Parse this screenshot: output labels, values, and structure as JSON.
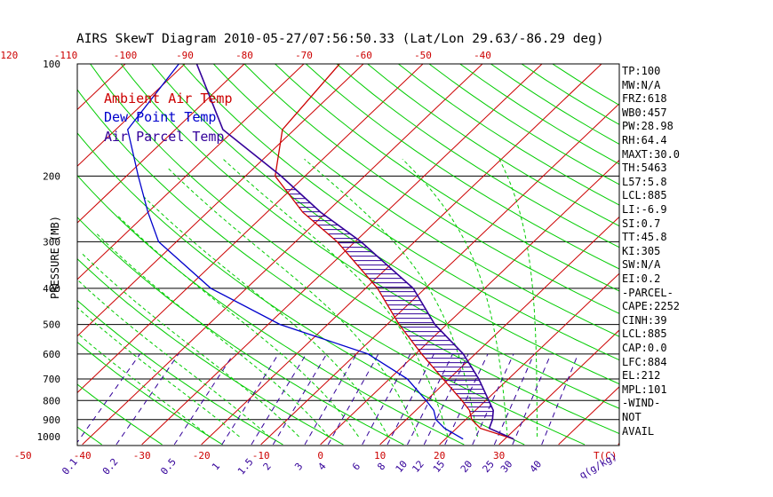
{
  "title": "AIRS SkewT Diagram 2010-05-27/07:56:50.33 (Lat/Lon 29.63/-86.29 deg)",
  "colors": {
    "ambient": "#cc0000",
    "dewpoint": "#0000cc",
    "parcel": "#330099",
    "isotherm": "#cc0000",
    "dry_adiabat": "#00cc00",
    "moist_adiabat": "#00cc00",
    "mixing_ratio": "#330099",
    "isobar": "#000000",
    "top_labels": "#cc0000",
    "bottom_labels": "#cc0000",
    "mixing_labels": "#330099"
  },
  "legend": [
    {
      "label": "Ambient Air Temp",
      "color": "#cc0000"
    },
    {
      "label": "Dew Point Temp",
      "color": "#0000cc"
    },
    {
      "label": "Air Parcel Temp",
      "color": "#330099"
    }
  ],
  "indices": [
    "TP:100",
    "MW:N/A",
    "FRZ:618",
    "WB0:457",
    "PW:28.98",
    "RH:64.4",
    "MAXT:30.0",
    "TH:5463",
    "L57:5.8",
    "LCL:885",
    "LI:-6.9",
    "SI:0.7",
    "TT:45.8",
    "KI:305",
    "SW:N/A",
    "EI:0.2",
    "-PARCEL-",
    "CAPE:2252",
    "CINH:39",
    "LCL:885",
    "CAP:0.0",
    "LFC:884",
    "EL:212",
    "MPL:101",
    "-WIND-",
    "NOT",
    "AVAIL"
  ],
  "chart_data": {
    "type": "line",
    "title": "AIRS SkewT Diagram 2010-05-27/07:56:50.33 (Lat/Lon 29.63/-86.29 deg)",
    "ylabel": "PRESSURE (MB)",
    "xlabel_bottom": "T(C)",
    "xlabel_mixing": "q(g/kg)",
    "pressure_ticks": [
      100,
      200,
      300,
      400,
      500,
      600,
      700,
      800,
      900,
      1000
    ],
    "isobars": [
      200,
      300,
      400,
      500,
      600,
      700,
      800,
      900
    ],
    "ylim": [
      1050,
      100
    ],
    "bottom_temp_ticks": [
      -50,
      -40,
      -30,
      -20,
      -10,
      0,
      10,
      20,
      30
    ],
    "top_temp_ticks": [
      -120,
      -110,
      -100,
      -90,
      -80,
      -70,
      -60,
      -50,
      -40
    ],
    "mixing_ratio_labels": [
      "0.1",
      "0.2",
      "0.5",
      "1",
      "1.5",
      "2",
      "3",
      "4",
      "6",
      "8",
      "10",
      "12",
      "15",
      "20",
      "25",
      "30",
      "40"
    ],
    "mixing_ratio_values": [
      0.1,
      0.2,
      0.5,
      1,
      1.5,
      2,
      3,
      4,
      6,
      8,
      10,
      12,
      15,
      20,
      25,
      30,
      40
    ],
    "isotherms": [
      -160,
      -150,
      -140,
      -130,
      -120,
      -110,
      -100,
      -90,
      -80,
      -70,
      -60,
      -50,
      -40,
      -30,
      -20,
      -10,
      0,
      10,
      20,
      30,
      40,
      50
    ],
    "dry_adiabats_theta_c": [
      -40,
      -30,
      -20,
      -10,
      0,
      10,
      20,
      30,
      40,
      50,
      60,
      70,
      80,
      90,
      100,
      110,
      120,
      130,
      140,
      150,
      160,
      170,
      180,
      190,
      200
    ],
    "moist_adiabats_c": [
      -20,
      -15,
      -10,
      -5,
      0,
      5,
      10,
      15,
      20,
      25,
      30,
      35
    ],
    "series": [
      {
        "name": "Ambient Air Temp",
        "pressure": [
          1015,
          950,
          900,
          850,
          800,
          700,
          600,
          500,
          400,
          300,
          250,
          200,
          150,
          100
        ],
        "temp_c": [
          31.5,
          24,
          21,
          19,
          16,
          9,
          1,
          -8,
          -18,
          -33,
          -44,
          -55,
          -62,
          -64
        ]
      },
      {
        "name": "Dew Point Temp",
        "pressure": [
          1015,
          950,
          900,
          850,
          800,
          700,
          600,
          500,
          400,
          300,
          250,
          200,
          150,
          100
        ],
        "temp_c": [
          23,
          18,
          15,
          13,
          10,
          3,
          -8,
          -28,
          -46,
          -63,
          -70,
          -78,
          -88,
          -91
        ]
      },
      {
        "name": "Air Parcel Temp",
        "pressure": [
          1015,
          950,
          900,
          850,
          800,
          700,
          600,
          500,
          400,
          300,
          250,
          200,
          150,
          100
        ],
        "temp_c": [
          31.5,
          25.5,
          24.5,
          23,
          20.5,
          15,
          8,
          -2,
          -12,
          -29,
          -41,
          -54,
          -72,
          -88
        ]
      }
    ]
  }
}
